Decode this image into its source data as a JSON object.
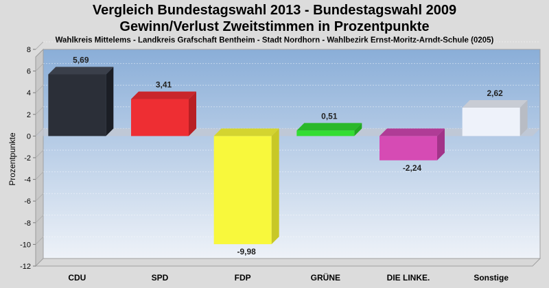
{
  "chart_data": {
    "type": "bar",
    "title": "Vergleich Bundestagswahl 2013 - Bundestagswahl 2009",
    "subtitle_line2": "Gewinn/Verlust Zweitstimmen in Prozentpunkte",
    "subtitle": "Wahlkreis Mittelems - Landkreis Grafschaft Bentheim - Stadt Nordhorn - Wahlbezirk Ernst-Moritz-Arndt-Schule (0205)",
    "ylabel": "Prozentpunkte",
    "xlabel": "",
    "ylim": [
      -12,
      8
    ],
    "yticks": [
      8,
      6,
      4,
      2,
      0,
      -2,
      -4,
      -6,
      -8,
      -10,
      -12
    ],
    "grid": true,
    "categories": [
      "CDU",
      "SPD",
      "FDP",
      "GRÜNE",
      "DIE LINKE.",
      "Sonstige"
    ],
    "values": [
      5.69,
      3.41,
      -9.98,
      0.51,
      -2.24,
      2.62
    ],
    "value_labels": [
      "5,69",
      "3,41",
      "-9,98",
      "0,51",
      "-2,24",
      "2,62"
    ],
    "colors": [
      "#2b2f38",
      "#ee2e33",
      "#f8f83c",
      "#33dd33",
      "#d64bb4",
      "#eef2fa"
    ],
    "side_colors": [
      "#1b1e25",
      "#b81f24",
      "#c8c826",
      "#22a822",
      "#a23489",
      "#b8bcc4"
    ],
    "top_colors": [
      "#3a3f4a",
      "#c9262b",
      "#d4d430",
      "#2ab82a",
      "#b03c96",
      "#c8ccd4"
    ]
  }
}
